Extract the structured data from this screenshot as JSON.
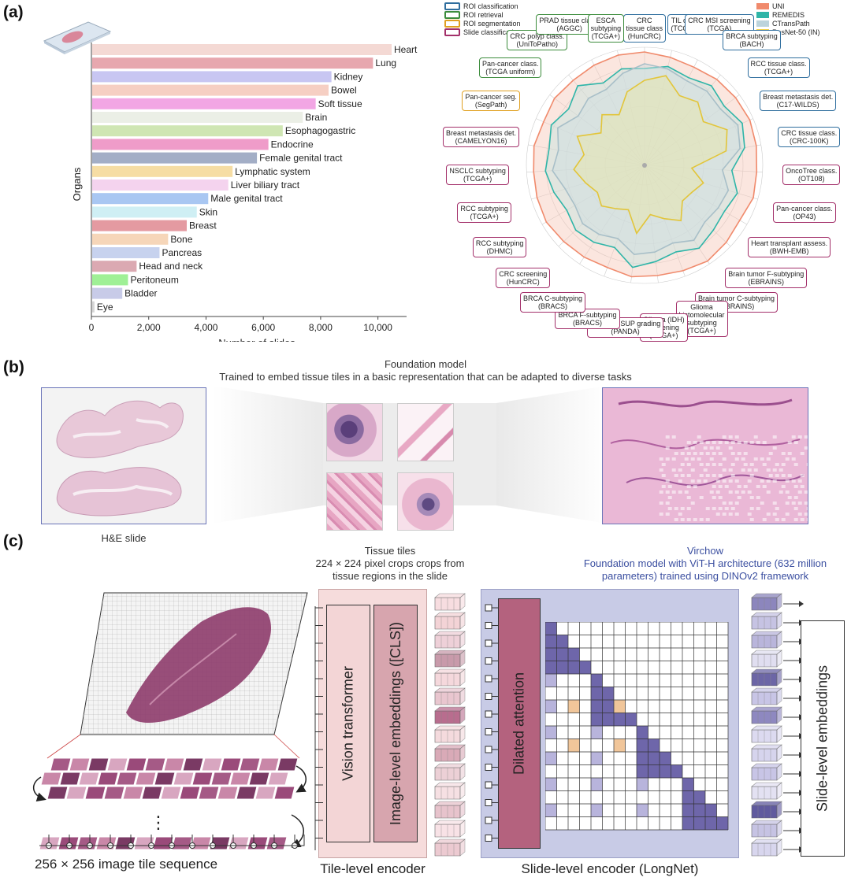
{
  "panels": {
    "a": "(a)",
    "b": "(b)",
    "c": "(c)"
  },
  "chart_data": [
    {
      "type": "bar",
      "orientation": "horizontal",
      "categories": [
        "Heart",
        "Lung",
        "Kidney",
        "Bowel",
        "Soft tissue",
        "Brain",
        "Esophagogastric",
        "Endocrine",
        "Female genital tract",
        "Lymphatic system",
        "Liver biliary tract",
        "Male genital tract",
        "Skin",
        "Breast",
        "Bone",
        "Pancreas",
        "Head and neck",
        "Peritoneum",
        "Bladder",
        "Eye"
      ],
      "values": [
        10450,
        9800,
        8350,
        8250,
        7800,
        7350,
        6650,
        6150,
        5750,
        4900,
        4750,
        4050,
        3650,
        3300,
        2650,
        2350,
        1550,
        1250,
        1050,
        80
      ],
      "colors": [
        "#f4d9d4",
        "#e7a7ae",
        "#c8c6f2",
        "#f6cfc3",
        "#f2a6e4",
        "#ebefe6",
        "#cfe6b3",
        "#ef9cc9",
        "#a3aec6",
        "#f6dda4",
        "#f4d3ee",
        "#a9c7f2",
        "#cfeff4",
        "#e49aa1",
        "#f6d6b9",
        "#c7d2ee",
        "#dba9b2",
        "#9ff096",
        "#c8cbe8",
        "#d6d6d6"
      ],
      "xlabel": "Number of slides",
      "ylabel": "Organs",
      "xticks": [
        "0",
        "2,000",
        "4,000",
        "6,000",
        "8,000",
        "10,000"
      ],
      "xlim": [
        0,
        11000
      ]
    },
    {
      "type": "radar",
      "legend_tasks": [
        {
          "label": "ROI classification",
          "color": "#2f6e9e"
        },
        {
          "label": "ROI retrieval",
          "color": "#3c8c3c"
        },
        {
          "label": "ROI segmentation",
          "color": "#e0a020"
        },
        {
          "label": "Slide classification",
          "color": "#a3306a"
        }
      ],
      "legend_models": [
        {
          "label": "UNI",
          "color": "#f08a6c"
        },
        {
          "label": "REMEDIS",
          "color": "#2fb5a8"
        },
        {
          "label": "CTransPath",
          "color": "#bcd4dc"
        },
        {
          "label": "ResNet-50 (IN)",
          "color": "#f0d24a"
        }
      ],
      "spoke_labels": [
        {
          "text": "CRC\ntissue class\n(HunCRC)",
          "task": 0
        },
        {
          "text": "TIL det.\n(TCGA)",
          "task": 0
        },
        {
          "text": "CRC MSI screening\n(TCGA)",
          "task": 0
        },
        {
          "text": "BRCA subtyping\n(BACH)",
          "task": 0
        },
        {
          "text": "RCC tissue class.\n(TCGA+)",
          "task": 0
        },
        {
          "text": "Breast metastasis det.\n(C17-WILDS)",
          "task": 0
        },
        {
          "text": "CRC tissue class.\n(CRC-100K)",
          "task": 0
        },
        {
          "text": "OncoTree class.\n(OT108)",
          "task": 3
        },
        {
          "text": "Pan-cancer class.\n(OP43)",
          "task": 3
        },
        {
          "text": "Heart transplant assess.\n(BWH-EMB)",
          "task": 3
        },
        {
          "text": "Brain tumor F-subtyping\n(EBRAINS)",
          "task": 3
        },
        {
          "text": "Brain tumor C-subtyping\n(EBRAINS)",
          "task": 3
        },
        {
          "text": "Glioma\nhistomolecular\nsubtyping\n(TCGA+)",
          "task": 3
        },
        {
          "text": "Glioma (IDH)\nscreening\n(TCGA+)",
          "task": 3
        },
        {
          "text": "Prostate ISUP grading\n(PANDA)",
          "task": 3
        },
        {
          "text": "BRCA F-subtyping\n(BRACS)",
          "task": 3
        },
        {
          "text": "BRCA C-subtyping\n(BRACS)",
          "task": 3
        },
        {
          "text": "CRC screening\n(HunCRC)",
          "task": 3
        },
        {
          "text": "RCC subtyping\n(DHMC)",
          "task": 3
        },
        {
          "text": "RCC subtyping\n(TCGA+)",
          "task": 3
        },
        {
          "text": "NSCLC subtyping\n(TCGA+)",
          "task": 3
        },
        {
          "text": "Breast metastasis det.\n(CAMELYON16)",
          "task": 3
        },
        {
          "text": "Pan-cancer seg.\n(SegPath)",
          "task": 2
        },
        {
          "text": "Pan-cancer class.\n(TCGA uniform)",
          "task": 1
        },
        {
          "text": "CRC polyp class.\n(UniToPatho)",
          "task": 1
        },
        {
          "text": "PRAD tissue class.\n(AGGC)",
          "task": 1
        },
        {
          "text": "ESCA\nsubtyping\n(TCGA+)",
          "task": 1
        }
      ],
      "series": [
        {
          "name": "UNI",
          "values": [
            0.96,
            0.94,
            0.93,
            0.95,
            0.96,
            0.97,
            0.96,
            0.95,
            0.96,
            0.93,
            0.95,
            0.97,
            0.95,
            0.94,
            0.95,
            0.92,
            0.93,
            0.94,
            0.96,
            0.95,
            0.94,
            0.95,
            0.93,
            0.95,
            0.94,
            0.95,
            0.96
          ]
        },
        {
          "name": "REMEDIS",
          "values": [
            0.82,
            0.86,
            0.83,
            0.88,
            0.84,
            0.9,
            0.86,
            0.74,
            0.82,
            0.78,
            0.8,
            0.84,
            0.78,
            0.82,
            0.87,
            0.74,
            0.78,
            0.8,
            0.76,
            0.8,
            0.84,
            0.82,
            0.86,
            0.8,
            0.88,
            0.78,
            0.84
          ]
        },
        {
          "name": "CTransPath",
          "values": [
            0.86,
            0.84,
            0.8,
            0.82,
            0.8,
            0.86,
            0.82,
            0.66,
            0.74,
            0.72,
            0.7,
            0.76,
            0.7,
            0.74,
            0.76,
            0.66,
            0.7,
            0.72,
            0.68,
            0.7,
            0.78,
            0.74,
            0.8,
            0.7,
            0.74,
            0.72,
            0.8
          ]
        },
        {
          "name": "ResNet-50 (IN)",
          "values": [
            0.72,
            0.78,
            0.66,
            0.7,
            0.62,
            0.76,
            0.7,
            0.4,
            0.52,
            0.46,
            0.44,
            0.56,
            0.48,
            0.42,
            0.58,
            0.4,
            0.44,
            0.5,
            0.46,
            0.52,
            0.6,
            0.52,
            0.62,
            0.46,
            0.56,
            0.48,
            0.64
          ]
        }
      ]
    }
  ],
  "panel_b": {
    "title": "Foundation model",
    "subtitle": "Trained to embed tissue tiles in a basic representation that can be adapted to diverse tasks",
    "slide_label": "H&E slide",
    "tiles_label_line1": "Tissue tiles",
    "tiles_label_line2": "224 × 224 pixel crops crops from",
    "tiles_label_line3": "tissue regions in the slide",
    "model_label_line1": "Virchow",
    "model_label_line2": "Foundation model with ViT-H architecture (632 million",
    "model_label_line3": "parameters) trained using DINOv2 framework",
    "model_label_color": "#3b4fa0"
  },
  "panel_c": {
    "tile_sequence_label": "256 × 256 image tile sequence",
    "vision_transformer": "Vision transformer",
    "image_embeddings": "Image-level embeddings ([CLS])",
    "tile_encoder_label": "Tile-level encoder",
    "dilated_attention": "Dilated attention",
    "slide_encoder_label": "Slide-level encoder (LongNet)",
    "slide_embeddings": "Slide-level embeddings",
    "ellipsis": "⋮"
  }
}
